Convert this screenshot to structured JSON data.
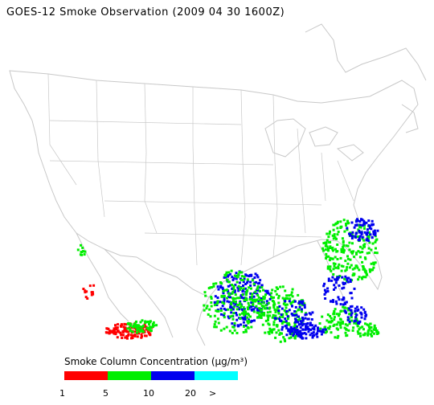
{
  "title": "GOES-12 Smoke Observation (2009 04 30  1600Z)",
  "legend": {
    "title": "Smoke Column Concentration (μg/m³)",
    "bins": [
      {
        "color": "#ff0000"
      },
      {
        "color": "#00ee00"
      },
      {
        "color": "#0000ee"
      },
      {
        "color": "#00ffff"
      }
    ],
    "ticks": [
      "1",
      "5",
      "10",
      "20",
      ">"
    ]
  },
  "colors": {
    "boundary": "#c8c8c8",
    "background": "#ffffff"
  }
}
